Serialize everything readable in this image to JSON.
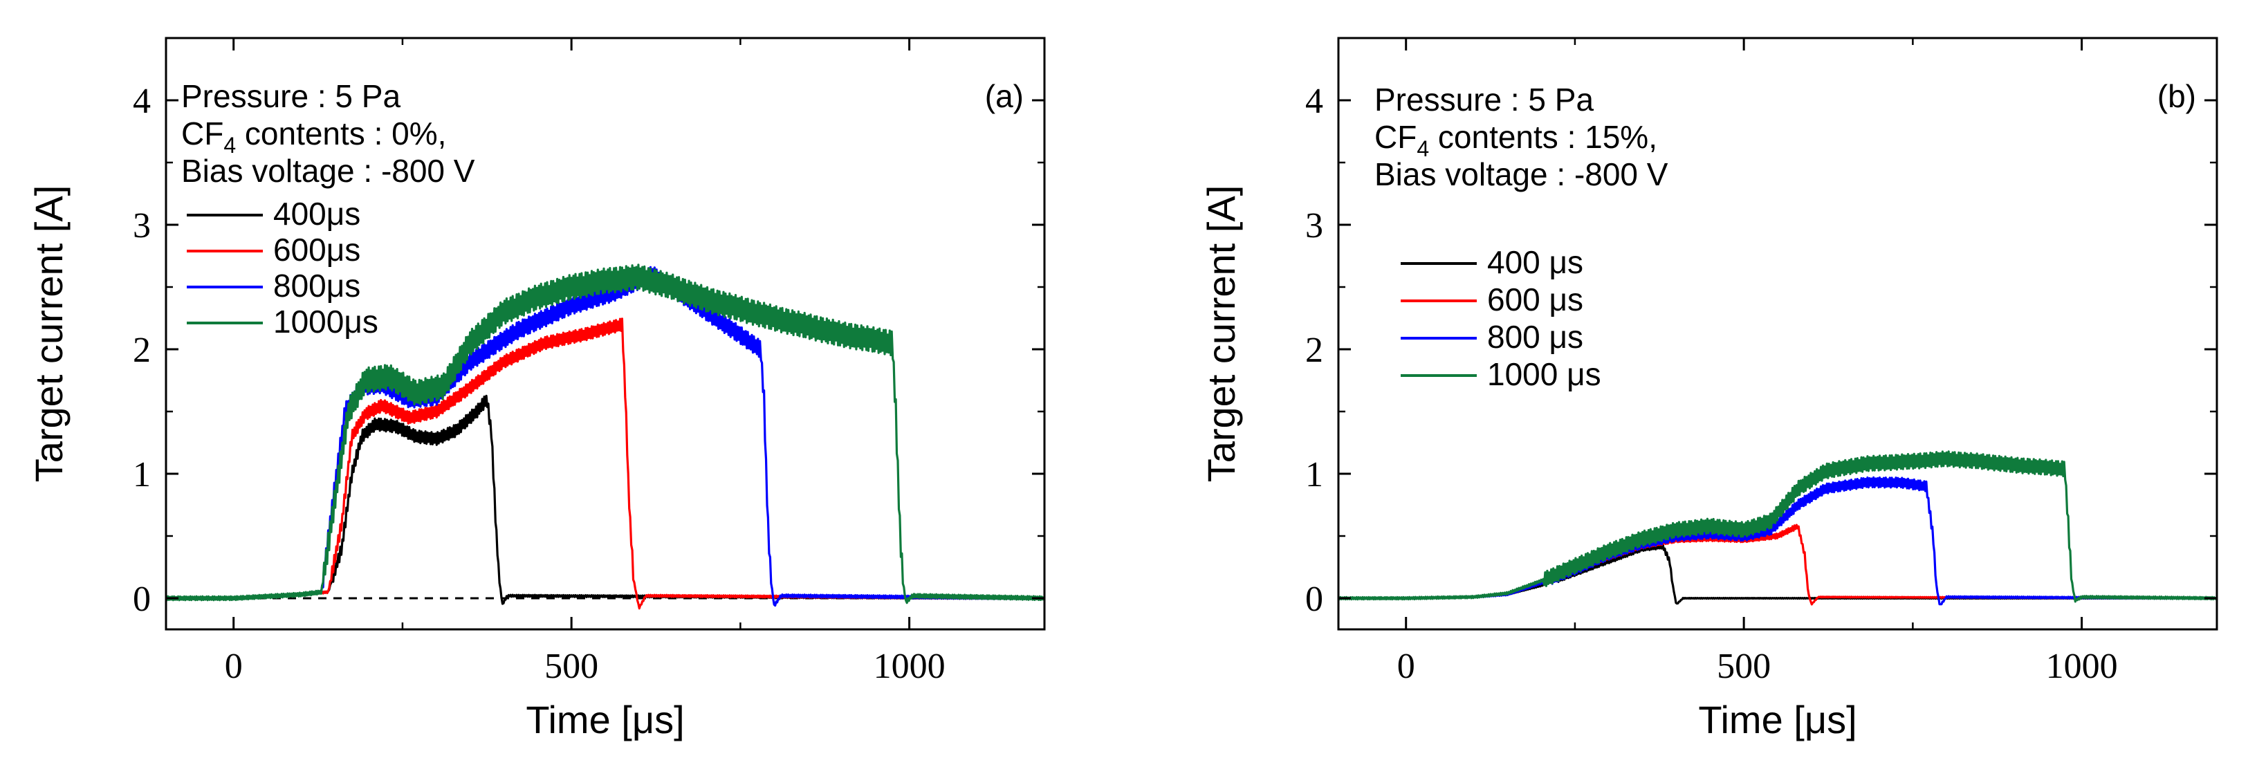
{
  "figure": {
    "background": "#ffffff"
  },
  "chart_data": [
    {
      "type": "line",
      "panel": "(a)",
      "xlabel": "Time [μs]",
      "ylabel": "Target current [A]",
      "xlim": [
        -100,
        1200
      ],
      "ylim": [
        -0.25,
        4.5
      ],
      "xticks": [
        0,
        500,
        1000
      ],
      "yticks": [
        0,
        1,
        2,
        3,
        4
      ],
      "annotations": {
        "line1": "Pressure : 5 Pa",
        "line2_prefix": "CF",
        "line2_sub": "4",
        "line2_suffix": " contents : 0%,",
        "line3": "Bias voltage : -800 V"
      },
      "baseline": {
        "y": 0,
        "style": "dashed"
      },
      "legend": {
        "position": "left"
      },
      "series": [
        {
          "name": "400μs",
          "color": "#000000",
          "ripple": 0.05,
          "points": [
            [
              -100,
              0
            ],
            [
              0,
              0
            ],
            [
              100,
              0.03
            ],
            [
              140,
              0.05
            ],
            [
              160,
              0.4
            ],
            [
              175,
              1.0
            ],
            [
              190,
              1.3
            ],
            [
              210,
              1.4
            ],
            [
              240,
              1.38
            ],
            [
              270,
              1.3
            ],
            [
              300,
              1.28
            ],
            [
              330,
              1.35
            ],
            [
              360,
              1.5
            ],
            [
              375,
              1.6
            ],
            [
              382,
              1.3
            ],
            [
              388,
              0.6
            ],
            [
              393,
              0.15
            ],
            [
              398,
              -0.05
            ],
            [
              405,
              0.02
            ],
            [
              1200,
              0
            ]
          ]
        },
        {
          "name": "600μs",
          "color": "#ff0000",
          "ripple": 0.05,
          "points": [
            [
              -100,
              0
            ],
            [
              0,
              0
            ],
            [
              100,
              0.03
            ],
            [
              140,
              0.05
            ],
            [
              160,
              0.6
            ],
            [
              175,
              1.3
            ],
            [
              195,
              1.48
            ],
            [
              220,
              1.55
            ],
            [
              260,
              1.45
            ],
            [
              300,
              1.5
            ],
            [
              340,
              1.65
            ],
            [
              400,
              1.9
            ],
            [
              460,
              2.05
            ],
            [
              520,
              2.12
            ],
            [
              575,
              2.2
            ],
            [
              580,
              1.6
            ],
            [
              585,
              0.8
            ],
            [
              592,
              0.15
            ],
            [
              600,
              -0.08
            ],
            [
              610,
              0.02
            ],
            [
              1200,
              0
            ]
          ]
        },
        {
          "name": "800μs",
          "color": "#0000ff",
          "ripple": 0.07,
          "points": [
            [
              -100,
              0
            ],
            [
              0,
              0
            ],
            [
              100,
              0.03
            ],
            [
              130,
              0.05
            ],
            [
              150,
              0.9
            ],
            [
              165,
              1.5
            ],
            [
              190,
              1.7
            ],
            [
              220,
              1.72
            ],
            [
              260,
              1.6
            ],
            [
              300,
              1.62
            ],
            [
              350,
              1.9
            ],
            [
              420,
              2.15
            ],
            [
              500,
              2.35
            ],
            [
              560,
              2.45
            ],
            [
              620,
              2.6
            ],
            [
              700,
              2.3
            ],
            [
              780,
              2.0
            ],
            [
              785,
              1.6
            ],
            [
              790,
              0.7
            ],
            [
              795,
              0.15
            ],
            [
              800,
              -0.06
            ],
            [
              810,
              0.02
            ],
            [
              1200,
              0
            ]
          ]
        },
        {
          "name": "1000μs",
          "color": "#0f7b3c",
          "ripple": 0.1,
          "points": [
            [
              -100,
              0
            ],
            [
              0,
              0
            ],
            [
              100,
              0.03
            ],
            [
              130,
              0.05
            ],
            [
              150,
              0.8
            ],
            [
              170,
              1.5
            ],
            [
              195,
              1.75
            ],
            [
              230,
              1.78
            ],
            [
              270,
              1.65
            ],
            [
              310,
              1.7
            ],
            [
              350,
              2.05
            ],
            [
              400,
              2.3
            ],
            [
              450,
              2.42
            ],
            [
              500,
              2.5
            ],
            [
              550,
              2.55
            ],
            [
              600,
              2.58
            ],
            [
              650,
              2.5
            ],
            [
              700,
              2.4
            ],
            [
              800,
              2.25
            ],
            [
              900,
              2.12
            ],
            [
              975,
              2.05
            ],
            [
              980,
              1.5
            ],
            [
              985,
              0.7
            ],
            [
              990,
              0.15
            ],
            [
              995,
              -0.03
            ],
            [
              1005,
              0.02
            ],
            [
              1200,
              0
            ]
          ]
        }
      ]
    },
    {
      "type": "line",
      "panel": "(b)",
      "xlabel": "Time [μs]",
      "ylabel": "Target current [A]",
      "xlim": [
        -100,
        1200
      ],
      "ylim": [
        -0.25,
        4.5
      ],
      "xticks": [
        0,
        500,
        1000
      ],
      "yticks": [
        0,
        1,
        2,
        3,
        4
      ],
      "annotations": {
        "line1": "Pressure : 5 Pa",
        "line2_prefix": "CF",
        "line2_sub": "4",
        "line2_suffix": " contents : 15%,",
        "line3": "Bias voltage : -800 V"
      },
      "legend": {
        "position": "center-left"
      },
      "series": [
        {
          "name": "400 μs",
          "color": "#000000",
          "ripple": 0.02,
          "points": [
            [
              -100,
              0
            ],
            [
              0,
              0
            ],
            [
              100,
              0.01
            ],
            [
              150,
              0.03
            ],
            [
              200,
              0.1
            ],
            [
              250,
              0.2
            ],
            [
              300,
              0.3
            ],
            [
              350,
              0.4
            ],
            [
              380,
              0.42
            ],
            [
              390,
              0.3
            ],
            [
              395,
              0.1
            ],
            [
              400,
              -0.05
            ],
            [
              410,
              0
            ],
            [
              1200,
              0
            ]
          ]
        },
        {
          "name": "600 μs",
          "color": "#ff0000",
          "ripple": 0.02,
          "points": [
            [
              -100,
              0
            ],
            [
              0,
              0
            ],
            [
              100,
              0.01
            ],
            [
              150,
              0.03
            ],
            [
              200,
              0.12
            ],
            [
              250,
              0.22
            ],
            [
              300,
              0.33
            ],
            [
              350,
              0.42
            ],
            [
              400,
              0.47
            ],
            [
              450,
              0.48
            ],
            [
              500,
              0.47
            ],
            [
              550,
              0.5
            ],
            [
              580,
              0.58
            ],
            [
              590,
              0.35
            ],
            [
              595,
              0.05
            ],
            [
              600,
              -0.05
            ],
            [
              610,
              0.01
            ],
            [
              1200,
              0
            ]
          ]
        },
        {
          "name": "800 μs",
          "color": "#0000ff",
          "ripple": 0.04,
          "points": [
            [
              -100,
              0
            ],
            [
              0,
              0
            ],
            [
              100,
              0.01
            ],
            [
              150,
              0.03
            ],
            [
              200,
              0.12
            ],
            [
              250,
              0.23
            ],
            [
              300,
              0.35
            ],
            [
              350,
              0.44
            ],
            [
              400,
              0.5
            ],
            [
              450,
              0.52
            ],
            [
              500,
              0.5
            ],
            [
              540,
              0.55
            ],
            [
              580,
              0.75
            ],
            [
              620,
              0.88
            ],
            [
              680,
              0.93
            ],
            [
              730,
              0.93
            ],
            [
              770,
              0.9
            ],
            [
              780,
              0.5
            ],
            [
              785,
              0.1
            ],
            [
              790,
              -0.06
            ],
            [
              800,
              0.01
            ],
            [
              1200,
              0
            ]
          ]
        },
        {
          "name": "1000 μs",
          "color": "#0f7b3c",
          "ripple": 0.06,
          "points": [
            [
              -100,
              0
            ],
            [
              0,
              0
            ],
            [
              100,
              0.01
            ],
            [
              150,
              0.04
            ],
            [
              200,
              0.14
            ],
            [
              250,
              0.26
            ],
            [
              300,
              0.38
            ],
            [
              350,
              0.48
            ],
            [
              400,
              0.55
            ],
            [
              450,
              0.58
            ],
            [
              500,
              0.55
            ],
            [
              540,
              0.62
            ],
            [
              580,
              0.88
            ],
            [
              620,
              1.02
            ],
            [
              680,
              1.08
            ],
            [
              750,
              1.1
            ],
            [
              800,
              1.12
            ],
            [
              850,
              1.1
            ],
            [
              900,
              1.07
            ],
            [
              975,
              1.04
            ],
            [
              980,
              0.6
            ],
            [
              985,
              0.15
            ],
            [
              990,
              -0.02
            ],
            [
              1000,
              0.01
            ],
            [
              1200,
              0
            ]
          ]
        }
      ]
    }
  ]
}
